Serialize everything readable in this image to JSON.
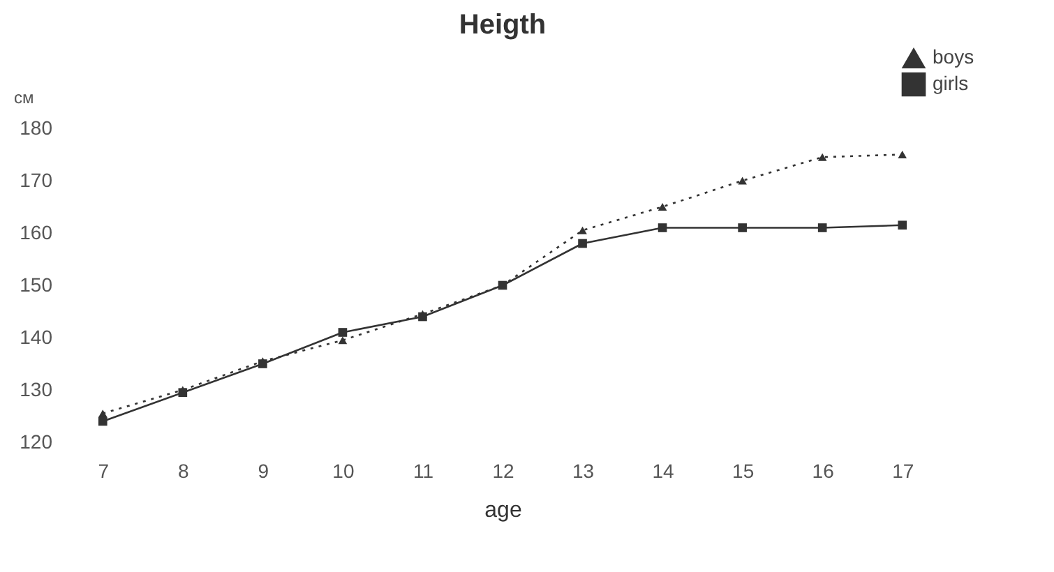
{
  "chart_data": {
    "type": "line",
    "title": "Heigth",
    "xlabel": "age",
    "ylabel": "см",
    "categories": [
      "7",
      "8",
      "9",
      "10",
      "11",
      "12",
      "13",
      "14",
      "15",
      "16",
      "17"
    ],
    "series": [
      {
        "name": "boys",
        "color": "#333333",
        "marker": "triangle",
        "line_style": "dotted",
        "values": [
          125.5,
          130,
          135.5,
          139.5,
          144.5,
          150,
          160.5,
          165,
          170,
          174.5,
          175
        ]
      },
      {
        "name": "girls",
        "color": "#333333",
        "marker": "square",
        "line_style": "solid",
        "values": [
          124,
          129.5,
          135,
          141,
          144,
          150,
          158,
          161,
          161,
          161,
          161.5
        ]
      }
    ],
    "ylim": [
      120,
      180
    ],
    "yticks": [
      120,
      130,
      140,
      150,
      160,
      170,
      180
    ],
    "grid": false,
    "legend": "top right"
  }
}
